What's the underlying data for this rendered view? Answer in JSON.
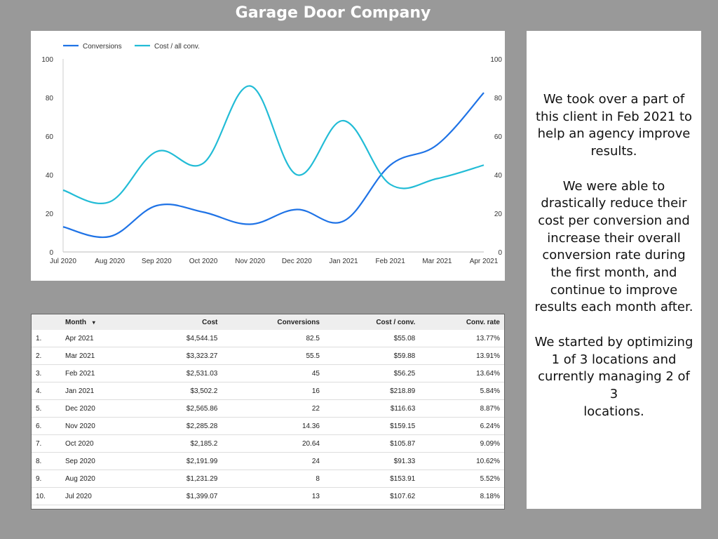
{
  "header": {
    "title": "Garage Door Company"
  },
  "chart_data": {
    "type": "line",
    "categories": [
      "Jul 2020",
      "Aug 2020",
      "Sep 2020",
      "Oct 2020",
      "Nov 2020",
      "Dec 2020",
      "Jan 2021",
      "Feb 2021",
      "Mar 2021",
      "Apr 2021"
    ],
    "series": [
      {
        "name": "Conversions",
        "color": "#1f73e6",
        "values": [
          13,
          8,
          24,
          20.64,
          14.36,
          22,
          16,
          45,
          55.5,
          82.5
        ]
      },
      {
        "name": "Cost / all conv.",
        "color": "#22bcd6",
        "values": [
          32,
          26,
          52,
          46,
          86,
          40,
          68,
          35,
          38,
          45
        ]
      }
    ],
    "y_ticks": [
      "0",
      "20",
      "40",
      "60",
      "80",
      "100"
    ],
    "ylim": [
      0,
      100
    ],
    "legend": "top-left"
  },
  "table": {
    "sort_indicator": "▾",
    "headers": [
      "Month",
      "Cost",
      "Conversions",
      "Cost / conv.",
      "Conv. rate"
    ],
    "rows": [
      [
        "1.",
        "Apr 2021",
        "$4,544.15",
        "82.5",
        "$55.08",
        "13.77%"
      ],
      [
        "2.",
        "Mar 2021",
        "$3,323.27",
        "55.5",
        "$59.88",
        "13.91%"
      ],
      [
        "3.",
        "Feb 2021",
        "$2,531.03",
        "45",
        "$56.25",
        "13.64%"
      ],
      [
        "4.",
        "Jan 2021",
        "$3,502.2",
        "16",
        "$218.89",
        "5.84%"
      ],
      [
        "5.",
        "Dec 2020",
        "$2,565.86",
        "22",
        "$116.63",
        "8.87%"
      ],
      [
        "6.",
        "Nov 2020",
        "$2,285.28",
        "14.36",
        "$159.15",
        "6.24%"
      ],
      [
        "7.",
        "Oct 2020",
        "$2,185.2",
        "20.64",
        "$105.87",
        "9.09%"
      ],
      [
        "8.",
        "Sep 2020",
        "$2,191.99",
        "24",
        "$91.33",
        "10.62%"
      ],
      [
        "9.",
        "Aug 2020",
        "$1,231.29",
        "8",
        "$153.91",
        "5.52%"
      ],
      [
        "10.",
        "Jul 2020",
        "$1,399.07",
        "13",
        "$107.62",
        "8.18%"
      ]
    ]
  },
  "note": {
    "lines_p1": [
      "We took over a part of",
      "this client in Feb 2021 to",
      "help an agency improve",
      "results."
    ],
    "lines_p2": [
      "We were able to",
      "drastically reduce their",
      "cost per conversion and",
      "increase their overall",
      "conversion rate during",
      "the first month, and",
      "continue to improve",
      "results each month after."
    ],
    "lines_p3": [
      "We started by optimizing",
      "1 of 3 locations and",
      "currently managing 2 of 3",
      "locations."
    ]
  }
}
